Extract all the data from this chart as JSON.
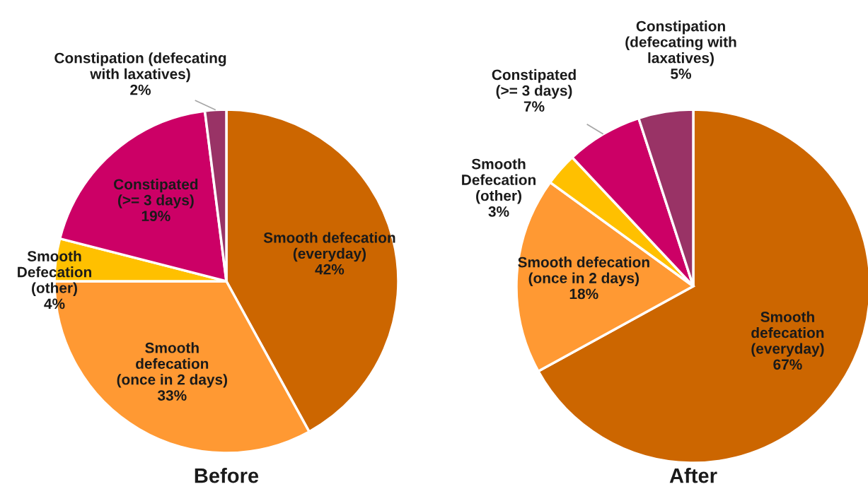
{
  "chart_data": [
    {
      "type": "pie",
      "title": "Before",
      "categories": [
        "Smooth defecation\n(everyday)",
        "Smooth\ndefecation\n(once in 2 days)",
        "Smooth\nDefecation\n(other)",
        "Constipated\n(>= 3 days)",
        "Constipation (defecating\nwith laxatives)"
      ],
      "values": [
        42,
        33,
        4,
        19,
        2
      ],
      "value_labels": [
        "42%",
        "33%",
        "4%",
        "19%",
        "2%"
      ],
      "colors": [
        "#cc6600",
        "#ff9933",
        "#ffc000",
        "#cc0066",
        "#993366"
      ]
    },
    {
      "type": "pie",
      "title": "After",
      "categories": [
        "Smooth\ndefecation\n(everyday)",
        "Smooth defecation\n(once in 2 days)",
        "Smooth\nDefecation\n(other)",
        "Constipated\n(>= 3 days)",
        "Constipation\n(defecating with\nlaxatives)"
      ],
      "values": [
        67,
        18,
        3,
        7,
        5
      ],
      "value_labels": [
        "67%",
        "18%",
        "3%",
        "7%",
        "5%"
      ],
      "colors": [
        "#cc6600",
        "#ff9933",
        "#ffc000",
        "#cc0066",
        "#993366"
      ]
    }
  ]
}
